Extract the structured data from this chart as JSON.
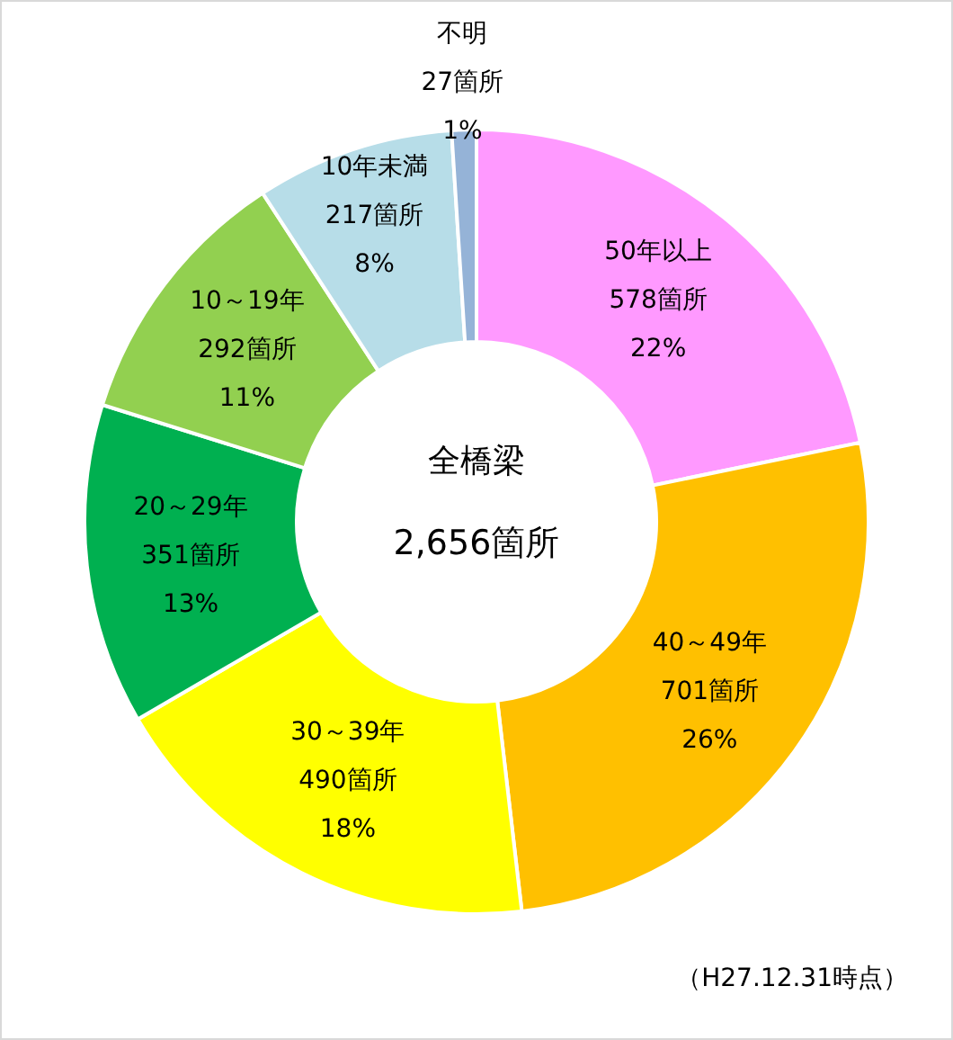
{
  "chart_data": {
    "type": "donut",
    "categories": [
      "50年以上",
      "40～49年",
      "30～39年",
      "20～29年",
      "10～19年",
      "10年未満",
      "不明"
    ],
    "values": [
      578,
      701,
      490,
      351,
      292,
      217,
      27
    ],
    "colors": [
      "#ff99ff",
      "#ffc000",
      "#ffff00",
      "#00b050",
      "#92d050",
      "#b7dde8",
      "#95b3d7"
    ],
    "value_labels": [
      "578箇所\n22%",
      "701箇所\n26%",
      "490箇所\n18%",
      "351箇所\n13%",
      "292箇所\n11%",
      "217箇所\n8%",
      "27箇所\n1%"
    ],
    "annotations": [
      "全橋梁",
      "2,656箇所",
      "（H27.12.31時点）"
    ]
  }
}
